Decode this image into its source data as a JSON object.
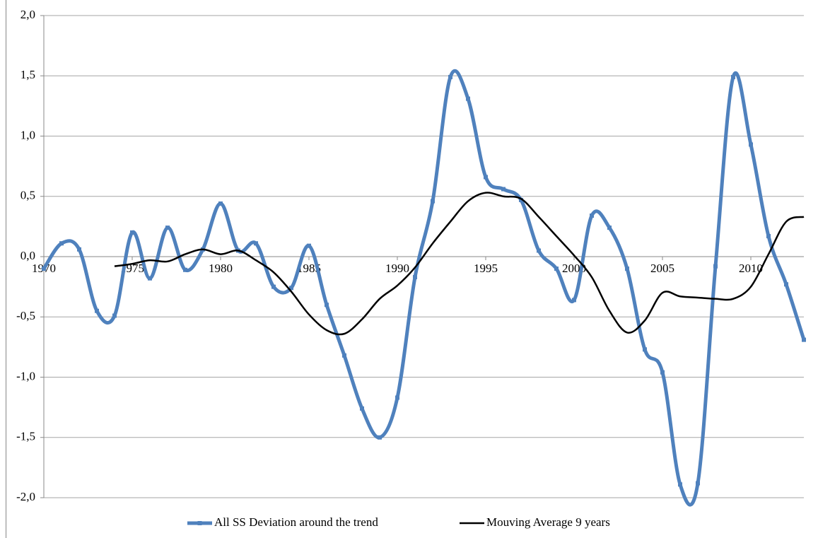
{
  "chart_data": {
    "type": "line",
    "x": [
      1970,
      1971,
      1972,
      1973,
      1974,
      1975,
      1976,
      1977,
      1978,
      1979,
      1980,
      1981,
      1982,
      1983,
      1984,
      1985,
      1986,
      1987,
      1988,
      1989,
      1990,
      1991,
      1992,
      1993,
      1994,
      1995,
      1996,
      1997,
      1998,
      1999,
      2000,
      2001,
      2002,
      2003,
      2004,
      2005,
      2006,
      2007,
      2008,
      2009,
      2010,
      2011,
      2012,
      2013
    ],
    "series": [
      {
        "name": "All SS Deviation around the trend",
        "color": "#4f81bd",
        "values": [
          -0.1,
          0.11,
          0.06,
          -0.45,
          -0.49,
          0.2,
          -0.18,
          0.24,
          -0.11,
          0.06,
          0.44,
          0.05,
          0.11,
          -0.25,
          -0.26,
          0.09,
          -0.4,
          -0.82,
          -1.26,
          -1.5,
          -1.17,
          -0.17,
          0.46,
          1.49,
          1.31,
          0.66,
          0.56,
          0.47,
          0.05,
          -0.1,
          -0.36,
          0.34,
          0.24,
          -0.1,
          -0.77,
          -0.96,
          -1.89,
          -1.88,
          -0.08,
          1.49,
          0.93,
          0.17,
          -0.23,
          -0.69
        ]
      },
      {
        "name": "Mouving Average 9 years",
        "color": "#000000",
        "values": [
          null,
          null,
          null,
          null,
          -0.08,
          -0.06,
          -0.03,
          -0.04,
          0.02,
          0.06,
          0.02,
          0.05,
          -0.03,
          -0.13,
          -0.29,
          -0.48,
          -0.61,
          -0.64,
          -0.52,
          -0.35,
          -0.24,
          -0.09,
          0.11,
          0.29,
          0.46,
          0.53,
          0.5,
          0.48,
          0.33,
          0.17,
          0.01,
          -0.17,
          -0.45,
          -0.63,
          -0.53,
          -0.3,
          -0.33,
          -0.34,
          -0.35,
          -0.35,
          -0.25,
          0.02,
          0.29,
          0.33
        ]
      }
    ],
    "xlim": [
      1970,
      2013
    ],
    "xticks": [
      1970,
      1975,
      1980,
      1985,
      1990,
      1995,
      2000,
      2005,
      2010
    ],
    "ylim": [
      -2,
      2
    ],
    "yticks": [
      {
        "value": -2,
        "label": "-2,0"
      },
      {
        "value": -1.5,
        "label": "-1,5"
      },
      {
        "value": -1,
        "label": "-1,0"
      },
      {
        "value": -0.5,
        "label": "-0,5"
      },
      {
        "value": 0,
        "label": "0,0"
      },
      {
        "value": 0.5,
        "label": "0,5"
      },
      {
        "value": 1,
        "label": "1,0"
      },
      {
        "value": 1.5,
        "label": "1,5"
      },
      {
        "value": 2,
        "label": "2,0"
      }
    ],
    "grid": true,
    "legend": "bottom"
  }
}
